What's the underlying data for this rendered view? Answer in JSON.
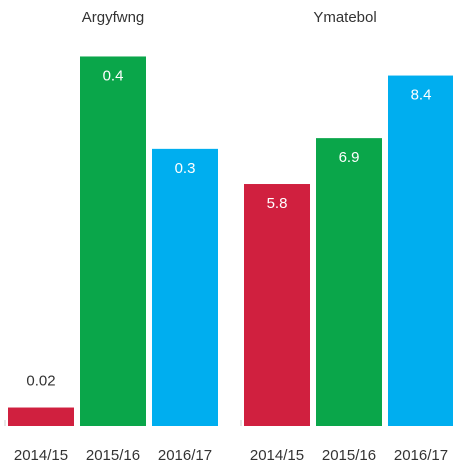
{
  "chart_data": [
    {
      "type": "bar",
      "title": "Argyfwng",
      "categories": [
        "2014/15",
        "2015/16",
        "2016/17"
      ],
      "values": [
        0.02,
        0.4,
        0.3
      ],
      "value_labels": [
        "0.02",
        "0.4",
        "0.3"
      ],
      "ylim": [
        0,
        0.42
      ],
      "grid": false,
      "legend": "none"
    },
    {
      "type": "bar",
      "title": "Ymatebol",
      "categories": [
        "2014/15",
        "2015/16",
        "2016/17"
      ],
      "values": [
        5.8,
        6.9,
        8.4
      ],
      "value_labels": [
        "5.8",
        "6.9",
        "8.4"
      ],
      "ylim": [
        0,
        9.3
      ],
      "grid": false,
      "legend": "none"
    }
  ],
  "colors": {
    "2014/15": "#d0203f",
    "2015/16": "#0aa64a",
    "2016/17": "#00aeef",
    "text": "#333333",
    "label_inside": "#ffffff"
  }
}
